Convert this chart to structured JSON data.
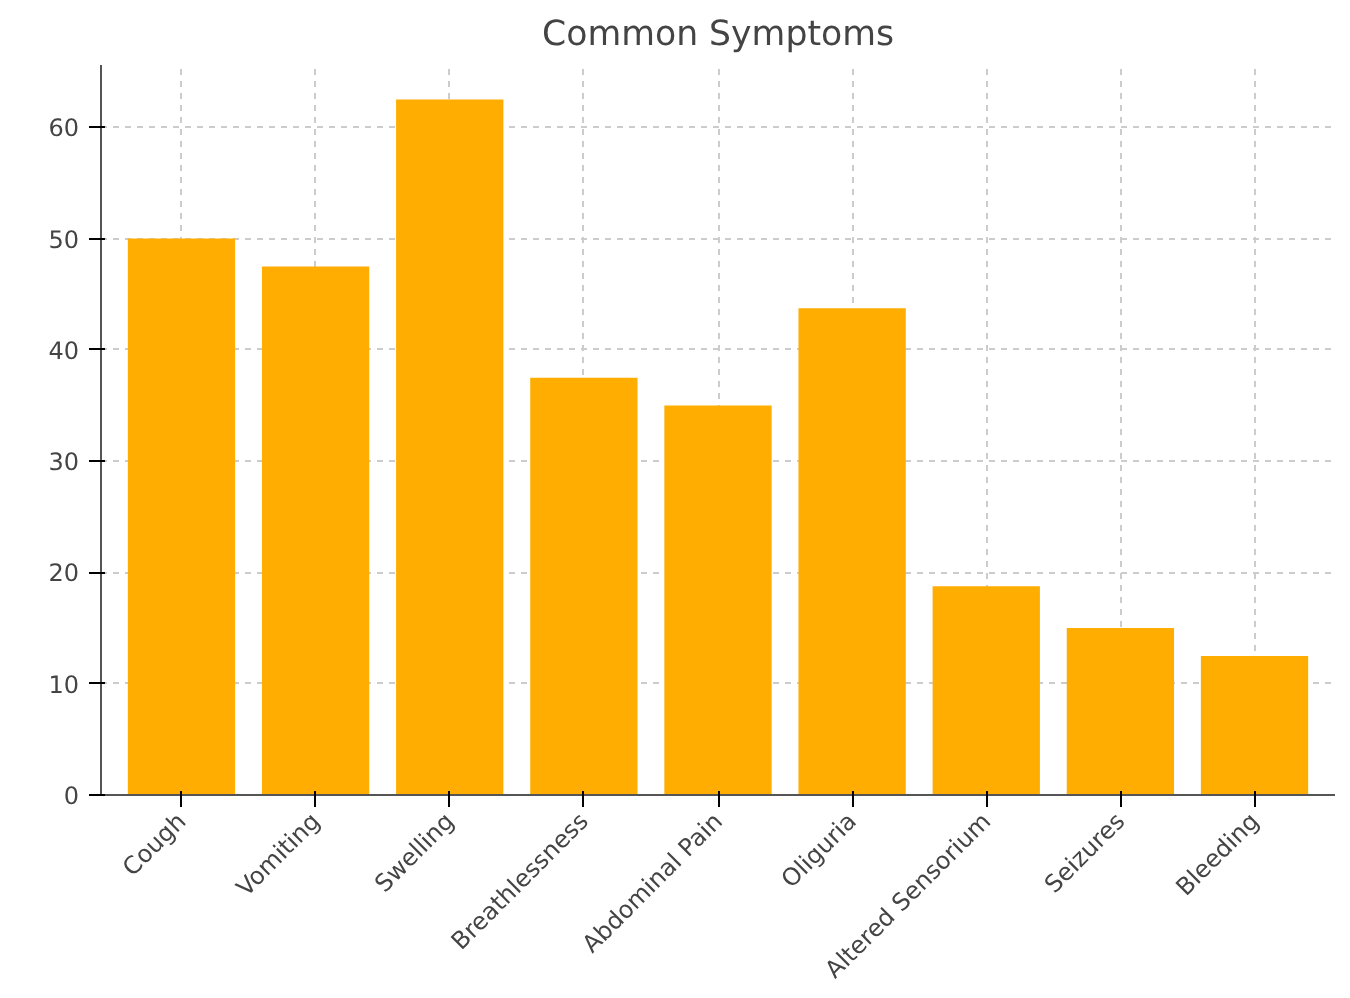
{
  "chart_data": {
    "type": "bar",
    "title": "Common Symptoms",
    "categories": [
      "Cough",
      "Vomiting",
      "Swelling",
      "Breathlessness",
      "Abdominal Pain",
      "Oliguria",
      "Altered Sensorium",
      "Seizures",
      "Bleeding"
    ],
    "values": [
      50,
      47.5,
      62.5,
      37.5,
      35,
      43.75,
      18.75,
      15,
      12.5
    ],
    "color": "#ffad00",
    "ylim": [
      0,
      65.6
    ],
    "yticks": [
      0,
      10,
      20,
      30,
      40,
      50,
      60
    ],
    "grid": true
  }
}
